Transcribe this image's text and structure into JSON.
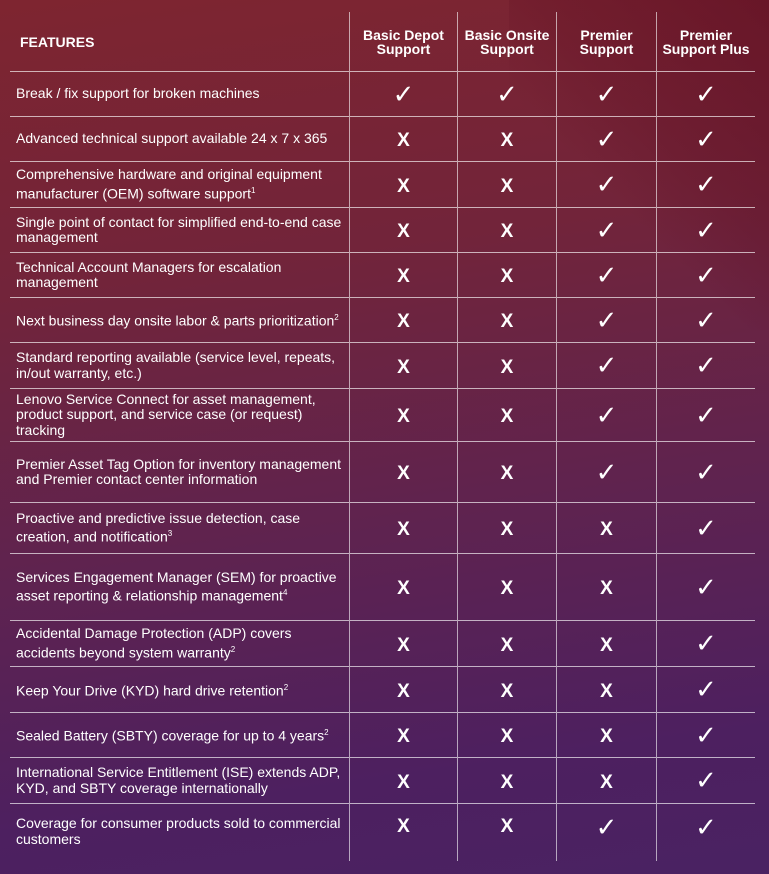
{
  "header": {
    "features": "FEATURES",
    "columns": [
      "Basic Depot Support",
      "Basic Onsite Support",
      "Premier Support",
      "Premier Support Plus"
    ]
  },
  "icons": {
    "yes": "checkmark-icon",
    "no": "x-mark-icon"
  },
  "glyphs": {
    "yes": "✓",
    "no": "X"
  },
  "rows": [
    {
      "text": "Break / fix support for broken machines",
      "sup": "",
      "values": [
        true,
        true,
        true,
        true
      ]
    },
    {
      "text": "Advanced technical support available 24 x 7 x 365",
      "sup": "",
      "values": [
        false,
        false,
        true,
        true
      ]
    },
    {
      "text": "Comprehensive hardware and original equipment manufacturer (OEM) software support",
      "sup": "1",
      "values": [
        false,
        false,
        true,
        true
      ]
    },
    {
      "text": "Single point of contact for simplified end-to-end case management",
      "sup": "",
      "values": [
        false,
        false,
        true,
        true
      ]
    },
    {
      "text": "Technical Account Managers for escalation management",
      "sup": "",
      "values": [
        false,
        false,
        true,
        true
      ]
    },
    {
      "text": "Next business day onsite labor & parts prioritization",
      "sup": "2",
      "values": [
        false,
        false,
        true,
        true
      ]
    },
    {
      "text": "Standard reporting available (service level, repeats, in/out warranty, etc.)",
      "sup": "",
      "values": [
        false,
        false,
        true,
        true
      ]
    },
    {
      "text": "Lenovo Service Connect for asset management, product support, and service case (or request) tracking",
      "sup": "",
      "values": [
        false,
        false,
        true,
        true
      ]
    },
    {
      "text": "Premier Asset Tag Option for inventory management and Premier contact center information",
      "sup": "",
      "values": [
        false,
        false,
        true,
        true
      ]
    },
    {
      "text": "Proactive and predictive issue detection, case creation, and notification",
      "sup": "3",
      "values": [
        false,
        false,
        false,
        true
      ]
    },
    {
      "text": "Services Engagement Manager (SEM) for proactive asset reporting & relationship management",
      "sup": "4",
      "values": [
        false,
        false,
        false,
        true
      ]
    },
    {
      "text": "Accidental Damage Protection (ADP) covers accidents beyond system warranty",
      "sup": "2",
      "values": [
        false,
        false,
        false,
        true
      ]
    },
    {
      "text": "Keep Your Drive (KYD) hard drive retention",
      "sup": "2",
      "values": [
        false,
        false,
        false,
        true
      ]
    },
    {
      "text": "Sealed Battery (SBTY) coverage for up to 4 years",
      "sup": "2",
      "values": [
        false,
        false,
        false,
        true
      ]
    },
    {
      "text": "International Service Entitlement (ISE) extends ADP, KYD, and SBTY coverage internationally",
      "sup": "",
      "values": [
        false,
        false,
        false,
        true
      ]
    },
    {
      "text": "Coverage for consumer products sold to commercial customers",
      "sup": "",
      "values": [
        false,
        false,
        true,
        true
      ]
    }
  ]
}
